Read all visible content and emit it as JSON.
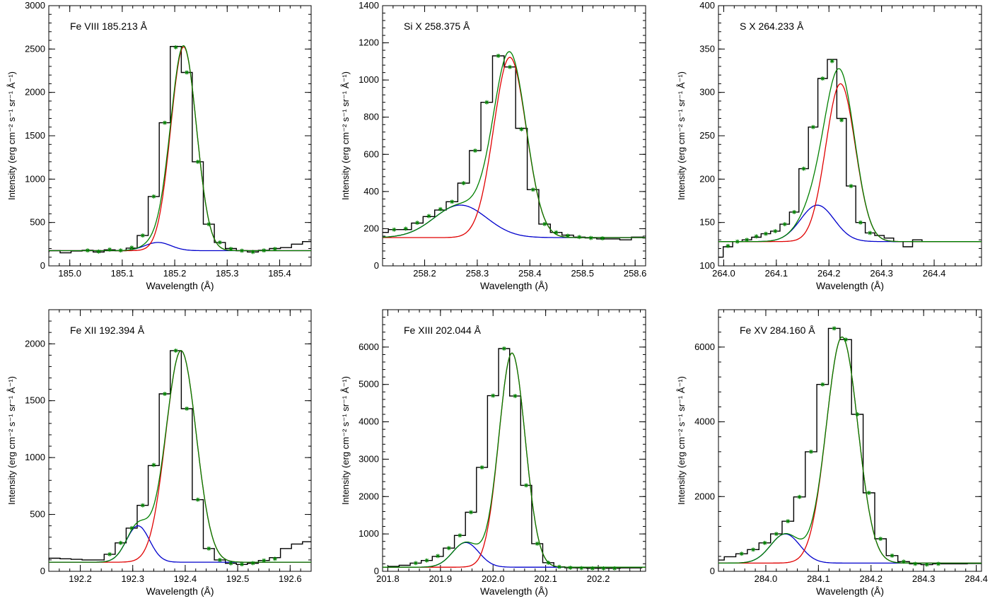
{
  "figure": {
    "xlabel": "Wavelength (Å)",
    "ylabel": "Intensity (erg cm⁻² s⁻¹ sr⁻¹ Å⁻¹)"
  },
  "colors": {
    "observed": "#000000",
    "total_fit": "#008000",
    "main_component": "#e00000",
    "secondary_component": "#0000cc",
    "fit_markers": "#008000"
  },
  "chart_data": [
    {
      "type": "line",
      "title": "Fe VIII 185.213 Å",
      "xlim": [
        184.96,
        185.46
      ],
      "ylim": [
        0,
        3000
      ],
      "xticks": [
        185.0,
        185.1,
        185.2,
        185.3,
        185.4
      ],
      "xtick_labels": [
        "185.0",
        "185.1",
        "185.2",
        "185.3",
        "185.4"
      ],
      "yticks": [
        0,
        500,
        1000,
        1500,
        2000,
        2500,
        3000
      ],
      "xlabel": "Wavelength (Å)",
      "ylabel": "Intensity (erg cm⁻² s⁻¹ sr⁻¹ Å⁻¹)",
      "baseline": 175,
      "main_component": {
        "center": 185.217,
        "amplitude": 2350,
        "sigma": 0.0245
      },
      "secondary_component": {
        "center": 185.168,
        "amplitude": 95,
        "sigma": 0.025
      },
      "observed": {
        "x": [
          184.95,
          184.971,
          184.992,
          185.013,
          185.034,
          185.055,
          185.076,
          185.097,
          185.118,
          185.139,
          185.16,
          185.181,
          185.202,
          185.223,
          185.244,
          185.265,
          185.286,
          185.307,
          185.328,
          185.349,
          185.37,
          185.391,
          185.412,
          185.433,
          185.454
        ],
        "y": [
          165,
          175,
          150,
          170,
          180,
          160,
          185,
          175,
          205,
          350,
          800,
          1650,
          2530,
          2230,
          1200,
          480,
          270,
          200,
          175,
          160,
          180,
          200,
          210,
          250,
          280
        ]
      },
      "fit_markers": {
        "x": [
          185.034,
          185.055,
          185.076,
          185.097,
          185.118,
          185.139,
          185.16,
          185.181,
          185.202,
          185.223,
          185.244,
          185.265,
          185.286,
          185.307,
          185.328,
          185.349,
          185.37,
          185.391
        ],
        "y": [
          178,
          165,
          188,
          178,
          210,
          350,
          800,
          1650,
          2520,
          2230,
          1200,
          480,
          270,
          195,
          175,
          160,
          178,
          195
        ]
      }
    },
    {
      "type": "line",
      "title": "Si X 258.375 Å",
      "xlim": [
        258.12,
        258.62
      ],
      "ylim": [
        0,
        1400
      ],
      "xticks": [
        258.2,
        258.3,
        258.4,
        258.5,
        258.6
      ],
      "xtick_labels": [
        "258.2",
        "258.3",
        "258.4",
        "258.5",
        "258.6"
      ],
      "yticks": [
        0,
        200,
        400,
        600,
        800,
        1000,
        1200,
        1400
      ],
      "xlabel": "Wavelength (Å)",
      "ylabel": "Intensity (erg cm⁻² s⁻¹ sr⁻¹ Å⁻¹)",
      "baseline": 152,
      "main_component": {
        "center": 258.362,
        "amplitude": 970,
        "sigma": 0.031
      },
      "secondary_component": {
        "center": 258.268,
        "amplitude": 175,
        "sigma": 0.05
      },
      "observed": {
        "x": [
          258.12,
          258.142,
          258.164,
          258.186,
          258.208,
          258.23,
          258.252,
          258.274,
          258.296,
          258.318,
          258.34,
          258.362,
          258.384,
          258.406,
          258.428,
          258.45,
          258.472,
          258.494,
          258.516,
          258.538,
          258.56,
          258.582,
          258.604,
          258.626
        ],
        "y": [
          180,
          195,
          195,
          230,
          265,
          300,
          345,
          445,
          620,
          880,
          1130,
          1070,
          740,
          410,
          225,
          180,
          165,
          155,
          150,
          145,
          145,
          140,
          155,
          150
        ]
      },
      "fit_markers": {
        "x": [
          258.142,
          258.164,
          258.186,
          258.208,
          258.23,
          258.252,
          258.274,
          258.296,
          258.318,
          258.34,
          258.362,
          258.384,
          258.406,
          258.428,
          258.45,
          258.472,
          258.494,
          258.516,
          258.538
        ],
        "y": [
          195,
          200,
          232,
          268,
          305,
          345,
          445,
          620,
          880,
          1130,
          1070,
          735,
          410,
          225,
          180,
          162,
          155,
          150,
          148
        ]
      }
    },
    {
      "type": "line",
      "title": "S X 264.233 Å",
      "xlim": [
        263.99,
        264.49
      ],
      "ylim": [
        100,
        400
      ],
      "xticks": [
        264.0,
        264.1,
        264.2,
        264.3,
        264.4
      ],
      "xtick_labels": [
        "264.0",
        "264.1",
        "264.2",
        "264.3",
        "264.4"
      ],
      "yticks": [
        100,
        150,
        200,
        250,
        300,
        350,
        400
      ],
      "xlabel": "Wavelength (Å)",
      "ylabel": "Intensity (erg cm⁻² s⁻¹ sr⁻¹ Å⁻¹)",
      "baseline": 128,
      "main_component": {
        "center": 264.222,
        "amplitude": 182,
        "sigma": 0.028
      },
      "secondary_component": {
        "center": 264.178,
        "amplitude": 42,
        "sigma": 0.032
      },
      "observed": {
        "x": [
          263.99,
          264.008,
          264.026,
          264.044,
          264.062,
          264.08,
          264.098,
          264.116,
          264.134,
          264.152,
          264.17,
          264.188,
          264.206,
          264.224,
          264.242,
          264.26,
          264.278,
          264.296,
          264.314,
          264.332,
          264.35,
          264.368,
          264.386,
          264.404
        ],
        "y": [
          110,
          122,
          128,
          130,
          133,
          137,
          140,
          148,
          162,
          212,
          260,
          316,
          338,
          270,
          192,
          150,
          138,
          135,
          132,
          128,
          122,
          130,
          128,
          128
        ]
      },
      "fit_markers": {
        "x": [
          264.008,
          264.026,
          264.044,
          264.062,
          264.08,
          264.098,
          264.116,
          264.134,
          264.152,
          264.17,
          264.188,
          264.206,
          264.224,
          264.242,
          264.26,
          264.278
        ],
        "y": [
          123,
          128,
          130,
          134,
          137,
          140,
          148,
          162,
          212,
          260,
          316,
          336,
          268,
          192,
          150,
          138
        ]
      }
    },
    {
      "type": "line",
      "title": "Fe XII 192.394 Å",
      "xlim": [
        192.14,
        192.64
      ],
      "ylim": [
        0,
        2300
      ],
      "xticks": [
        192.2,
        192.3,
        192.4,
        192.5,
        192.6
      ],
      "xtick_labels": [
        "192.2",
        "192.3",
        "192.4",
        "192.5",
        "192.6"
      ],
      "yticks": [
        0,
        500,
        1000,
        1500,
        2000
      ],
      "xlabel": "Wavelength (Å)",
      "ylabel": "Intensity (erg cm⁻² s⁻¹ sr⁻¹ Å⁻¹)",
      "baseline": 80,
      "main_component": {
        "center": 192.392,
        "amplitude": 1860,
        "sigma": 0.029
      },
      "secondary_component": {
        "center": 192.31,
        "amplitude": 320,
        "sigma": 0.022
      },
      "observed": {
        "x": [
          192.13,
          192.151,
          192.172,
          192.193,
          192.214,
          192.235,
          192.256,
          192.277,
          192.298,
          192.319,
          192.34,
          192.361,
          192.382,
          192.403,
          192.424,
          192.445,
          192.466,
          192.487,
          192.508,
          192.529,
          192.55,
          192.571,
          192.592,
          192.613,
          192.634
        ],
        "y": [
          110,
          115,
          110,
          105,
          100,
          100,
          150,
          250,
          380,
          580,
          930,
          1560,
          1940,
          1430,
          630,
          200,
          100,
          70,
          60,
          70,
          95,
          120,
          200,
          240,
          260
        ]
      },
      "fit_markers": {
        "x": [
          192.256,
          192.277,
          192.298,
          192.319,
          192.34,
          192.361,
          192.382,
          192.403,
          192.424,
          192.445,
          192.466,
          192.487,
          192.508,
          192.529,
          192.55,
          192.571
        ],
        "y": [
          150,
          250,
          380,
          580,
          935,
          1560,
          1940,
          1430,
          630,
          200,
          100,
          70,
          62,
          72,
          95,
          110
        ]
      }
    },
    {
      "type": "line",
      "title": "Fe XIII 202.044 Å",
      "xlim": [
        201.79,
        202.29
      ],
      "ylim": [
        0,
        7000
      ],
      "xticks": [
        201.8,
        201.9,
        202.0,
        202.1,
        202.2
      ],
      "xtick_labels": [
        "201.8",
        "201.9",
        "202.0",
        "202.1",
        "202.2"
      ],
      "yticks": [
        0,
        1000,
        2000,
        3000,
        4000,
        5000,
        6000
      ],
      "xlabel": "Wavelength (Å)",
      "ylabel": "Intensity (erg cm⁻² s⁻¹ sr⁻¹ Å⁻¹)",
      "baseline": 110,
      "main_component": {
        "center": 202.036,
        "amplitude": 5730,
        "sigma": 0.025
      },
      "secondary_component": {
        "center": 201.948,
        "amplitude": 660,
        "sigma": 0.025
      },
      "observed": {
        "x": [
          201.79,
          201.811,
          201.832,
          201.853,
          201.874,
          201.895,
          201.916,
          201.937,
          201.958,
          201.979,
          202.0,
          202.021,
          202.042,
          202.063,
          202.084,
          202.105,
          202.126,
          202.147,
          202.168,
          202.189,
          202.21,
          202.231,
          202.252,
          202.273
        ],
        "y": [
          110,
          130,
          160,
          220,
          290,
          400,
          620,
          960,
          1580,
          2780,
          4700,
          5960,
          4690,
          2300,
          740,
          230,
          120,
          95,
          90,
          80,
          80,
          80,
          90,
          90
        ]
      },
      "fit_markers": {
        "x": [
          201.853,
          201.874,
          201.895,
          201.916,
          201.937,
          201.958,
          201.979,
          202.0,
          202.021,
          202.042,
          202.063,
          202.084,
          202.105,
          202.126,
          202.147,
          202.168,
          202.189,
          202.21,
          202.231
        ],
        "y": [
          220,
          290,
          410,
          620,
          960,
          1580,
          2780,
          4700,
          5960,
          4690,
          2300,
          740,
          230,
          120,
          95,
          85,
          80,
          78,
          80
        ]
      }
    },
    {
      "type": "line",
      "title": "Fe XV 284.160 Å",
      "xlim": [
        283.91,
        284.41
      ],
      "ylim": [
        0,
        7000
      ],
      "xticks": [
        284.0,
        284.1,
        284.2,
        284.3,
        284.4
      ],
      "xtick_labels": [
        "284.0",
        "284.1",
        "284.2",
        "284.3",
        "284.4"
      ],
      "yticks": [
        0,
        2000,
        4000,
        6000
      ],
      "xlabel": "Wavelength (Å)",
      "ylabel": "Intensity (erg cm⁻² s⁻¹ sr⁻¹ Å⁻¹)",
      "baseline": 220,
      "main_component": {
        "center": 284.145,
        "amplitude": 6050,
        "sigma": 0.03
      },
      "secondary_component": {
        "center": 284.037,
        "amplitude": 780,
        "sigma": 0.028
      },
      "observed": {
        "x": [
          283.91,
          283.932,
          283.954,
          283.976,
          283.998,
          284.02,
          284.042,
          284.064,
          284.086,
          284.108,
          284.13,
          284.152,
          284.174,
          284.196,
          284.218,
          284.24,
          284.262,
          284.284,
          284.306,
          284.328,
          284.35,
          284.372,
          284.394,
          284.416
        ],
        "y": [
          300,
          390,
          470,
          580,
          760,
          1000,
          1340,
          1990,
          3200,
          5000,
          6500,
          6200,
          4200,
          2100,
          870,
          420,
          260,
          200,
          180,
          200,
          200,
          200,
          210,
          210
        ]
      },
      "fit_markers": {
        "x": [
          283.954,
          283.976,
          283.998,
          284.02,
          284.042,
          284.064,
          284.086,
          284.108,
          284.13,
          284.152,
          284.174,
          284.196,
          284.218,
          284.24,
          284.262,
          284.284,
          284.306,
          284.328
        ],
        "y": [
          470,
          580,
          760,
          1000,
          1340,
          1990,
          3200,
          5000,
          6500,
          6200,
          4200,
          2100,
          870,
          420,
          260,
          200,
          180,
          200
        ]
      }
    }
  ]
}
